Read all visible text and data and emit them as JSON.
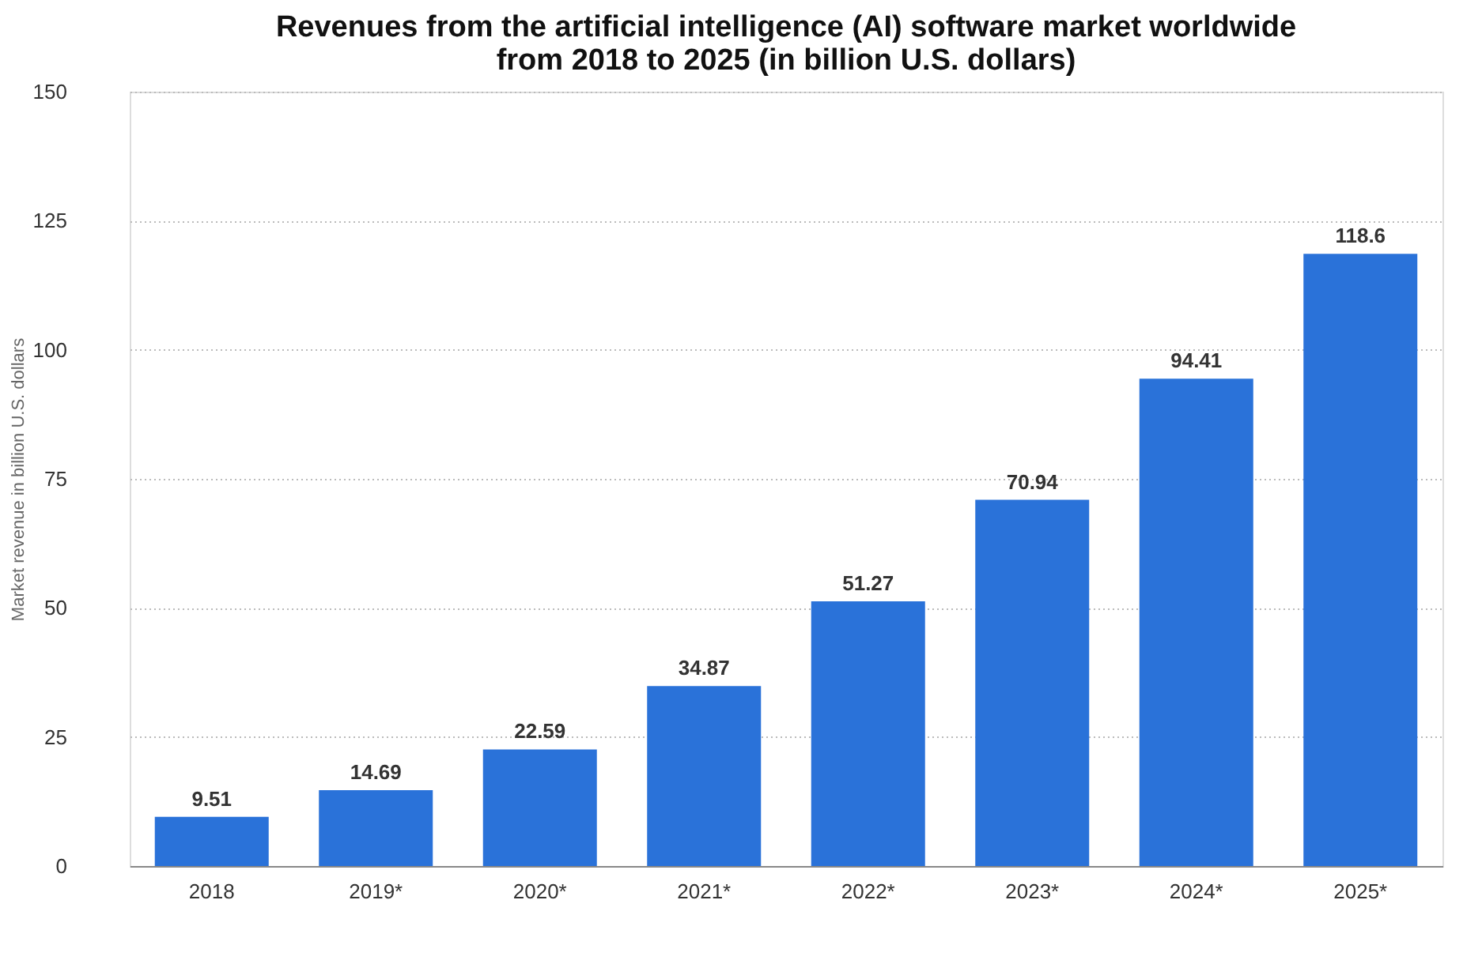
{
  "chart_data": {
    "type": "bar",
    "title": "Revenues from the artificial intelligence (AI) software market worldwide from 2018 to 2025 (in billion U.S. dollars)",
    "ylabel": "Market revenue in billion U.S. dollars",
    "categories": [
      "2018",
      "2019*",
      "2020*",
      "2021*",
      "2022*",
      "2023*",
      "2024*",
      "2025*"
    ],
    "values": [
      9.51,
      14.69,
      22.59,
      34.87,
      51.27,
      70.94,
      94.41,
      118.6
    ],
    "color": "#2a72d9",
    "ylim": [
      0,
      150
    ],
    "yticks": [
      0,
      25,
      50,
      75,
      100,
      125,
      150
    ],
    "grid": "y",
    "data_labels": true
  }
}
